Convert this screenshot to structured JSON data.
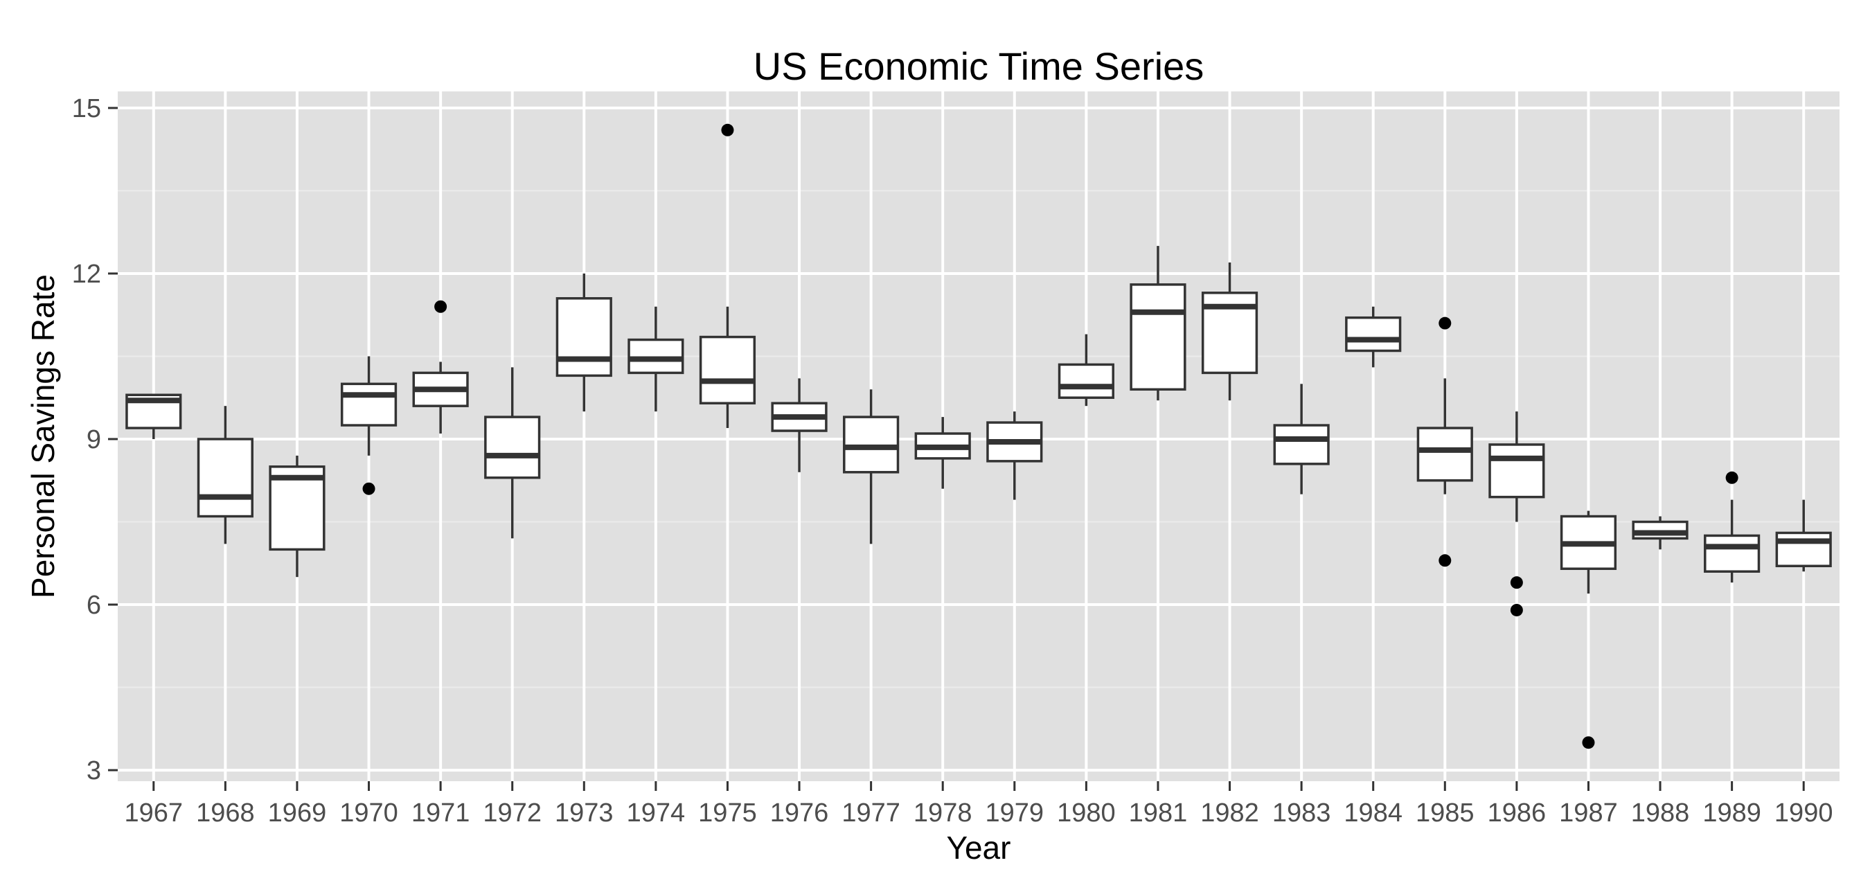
{
  "chart_data": {
    "type": "boxplot",
    "title": "US Economic Time Series",
    "xlabel": "Year",
    "ylabel": "Personal Savings Rate",
    "categories": [
      "1967",
      "1968",
      "1969",
      "1970",
      "1971",
      "1972",
      "1973",
      "1974",
      "1975",
      "1976",
      "1977",
      "1978",
      "1979",
      "1980",
      "1981",
      "1982",
      "1983",
      "1984",
      "1985",
      "1986",
      "1987",
      "1988",
      "1989",
      "1990"
    ],
    "ylim": [
      2.8,
      15.3
    ],
    "yticks": [
      3,
      6,
      9,
      12,
      15
    ],
    "grid": true,
    "legend": "none",
    "colors": {
      "panel": "#e0e0e0",
      "grid_major": "#ffffff",
      "grid_minor": "#ebebeb",
      "box_fill": "#ffffff",
      "box_line": "#333333",
      "median": "#333333",
      "outlier": "#000000"
    },
    "boxes": [
      {
        "year": "1967",
        "lower_whisker": 9.0,
        "q1": 9.2,
        "median": 9.7,
        "q3": 9.8,
        "upper_whisker": 9.8,
        "outliers": []
      },
      {
        "year": "1968",
        "lower_whisker": 7.1,
        "q1": 7.6,
        "median": 7.95,
        "q3": 9.0,
        "upper_whisker": 9.6,
        "outliers": []
      },
      {
        "year": "1969",
        "lower_whisker": 6.5,
        "q1": 7.0,
        "median": 8.3,
        "q3": 8.5,
        "upper_whisker": 8.7,
        "outliers": []
      },
      {
        "year": "1970",
        "lower_whisker": 8.7,
        "q1": 9.25,
        "median": 9.8,
        "q3": 10.0,
        "upper_whisker": 10.5,
        "outliers": [
          8.1
        ]
      },
      {
        "year": "1971",
        "lower_whisker": 9.1,
        "q1": 9.6,
        "median": 9.9,
        "q3": 10.2,
        "upper_whisker": 10.4,
        "outliers": [
          11.4
        ]
      },
      {
        "year": "1972",
        "lower_whisker": 7.2,
        "q1": 8.3,
        "median": 8.7,
        "q3": 9.4,
        "upper_whisker": 10.3,
        "outliers": []
      },
      {
        "year": "1973",
        "lower_whisker": 9.5,
        "q1": 10.15,
        "median": 10.45,
        "q3": 11.55,
        "upper_whisker": 12.0,
        "outliers": []
      },
      {
        "year": "1974",
        "lower_whisker": 9.5,
        "q1": 10.2,
        "median": 10.45,
        "q3": 10.8,
        "upper_whisker": 11.4,
        "outliers": []
      },
      {
        "year": "1975",
        "lower_whisker": 9.2,
        "q1": 9.65,
        "median": 10.05,
        "q3": 10.85,
        "upper_whisker": 11.4,
        "outliers": [
          14.6
        ]
      },
      {
        "year": "1976",
        "lower_whisker": 8.4,
        "q1": 9.15,
        "median": 9.4,
        "q3": 9.65,
        "upper_whisker": 10.1,
        "outliers": []
      },
      {
        "year": "1977",
        "lower_whisker": 7.1,
        "q1": 8.4,
        "median": 8.85,
        "q3": 9.4,
        "upper_whisker": 9.9,
        "outliers": []
      },
      {
        "year": "1978",
        "lower_whisker": 8.1,
        "q1": 8.65,
        "median": 8.85,
        "q3": 9.1,
        "upper_whisker": 9.4,
        "outliers": []
      },
      {
        "year": "1979",
        "lower_whisker": 7.9,
        "q1": 8.6,
        "median": 8.95,
        "q3": 9.3,
        "upper_whisker": 9.5,
        "outliers": []
      },
      {
        "year": "1980",
        "lower_whisker": 9.6,
        "q1": 9.75,
        "median": 9.95,
        "q3": 10.35,
        "upper_whisker": 10.9,
        "outliers": []
      },
      {
        "year": "1981",
        "lower_whisker": 9.7,
        "q1": 9.9,
        "median": 11.3,
        "q3": 11.8,
        "upper_whisker": 12.5,
        "outliers": []
      },
      {
        "year": "1982",
        "lower_whisker": 9.7,
        "q1": 10.2,
        "median": 11.4,
        "q3": 11.65,
        "upper_whisker": 12.2,
        "outliers": []
      },
      {
        "year": "1983",
        "lower_whisker": 8.0,
        "q1": 8.55,
        "median": 9.0,
        "q3": 9.25,
        "upper_whisker": 10.0,
        "outliers": []
      },
      {
        "year": "1984",
        "lower_whisker": 10.3,
        "q1": 10.6,
        "median": 10.8,
        "q3": 11.2,
        "upper_whisker": 11.4,
        "outliers": []
      },
      {
        "year": "1985",
        "lower_whisker": 8.0,
        "q1": 8.25,
        "median": 8.8,
        "q3": 9.2,
        "upper_whisker": 10.1,
        "outliers": [
          11.1,
          6.8
        ]
      },
      {
        "year": "1986",
        "lower_whisker": 7.5,
        "q1": 7.95,
        "median": 8.65,
        "q3": 8.9,
        "upper_whisker": 9.5,
        "outliers": [
          6.4,
          5.9
        ]
      },
      {
        "year": "1987",
        "lower_whisker": 6.2,
        "q1": 6.65,
        "median": 7.1,
        "q3": 7.6,
        "upper_whisker": 7.7,
        "outliers": [
          3.5
        ]
      },
      {
        "year": "1988",
        "lower_whisker": 7.0,
        "q1": 7.2,
        "median": 7.3,
        "q3": 7.5,
        "upper_whisker": 7.6,
        "outliers": []
      },
      {
        "year": "1989",
        "lower_whisker": 6.4,
        "q1": 6.6,
        "median": 7.05,
        "q3": 7.25,
        "upper_whisker": 7.9,
        "outliers": [
          8.3
        ]
      },
      {
        "year": "1990",
        "lower_whisker": 6.6,
        "q1": 6.7,
        "median": 7.15,
        "q3": 7.3,
        "upper_whisker": 7.9,
        "outliers": []
      }
    ]
  }
}
